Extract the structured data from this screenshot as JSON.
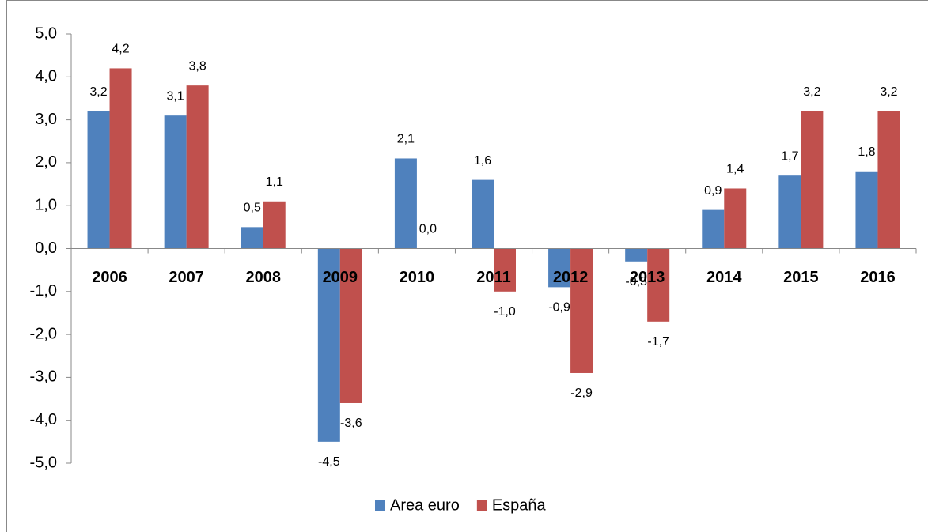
{
  "chart_data": {
    "type": "bar",
    "categories": [
      "2006",
      "2007",
      "2008",
      "2009",
      "2010",
      "2011",
      "2012",
      "2013",
      "2014",
      "2015",
      "2016"
    ],
    "series": [
      {
        "name": "Area euro",
        "color": "#4f81bd",
        "values": [
          3.2,
          3.1,
          0.5,
          -4.5,
          2.1,
          1.6,
          -0.9,
          -0.3,
          0.9,
          1.7,
          1.8
        ],
        "value_labels": [
          "3,2",
          "3,1",
          "0,5",
          "-4,5",
          "2,1",
          "1,6",
          "-0,9",
          "-0,3",
          "0,9",
          "1,7",
          "1,8"
        ]
      },
      {
        "name": "España",
        "color": "#c0504d",
        "values": [
          4.2,
          3.8,
          1.1,
          -3.6,
          0.0,
          -1.0,
          -2.9,
          -1.7,
          1.4,
          3.2,
          3.2
        ],
        "value_labels": [
          "4,2",
          "3,8",
          "1,1",
          "-3,6",
          "0,0",
          "-1,0",
          "-2,9",
          "-1,7",
          "1,4",
          "3,2",
          "3,2"
        ]
      }
    ],
    "ylim": [
      -5,
      5
    ],
    "yticks": [
      {
        "value": -5,
        "label": "-5,0"
      },
      {
        "value": -4,
        "label": "-4,0"
      },
      {
        "value": -3,
        "label": "-3,0"
      },
      {
        "value": -2,
        "label": "-2,0"
      },
      {
        "value": -1,
        "label": "-1,0"
      },
      {
        "value": 0,
        "label": "0,0"
      },
      {
        "value": 1,
        "label": "1,0"
      },
      {
        "value": 2,
        "label": "2,0"
      },
      {
        "value": 3,
        "label": "3,0"
      },
      {
        "value": 4,
        "label": "4,0"
      },
      {
        "value": 5,
        "label": "5,0"
      }
    ],
    "grid": false,
    "legend": "bottom"
  }
}
